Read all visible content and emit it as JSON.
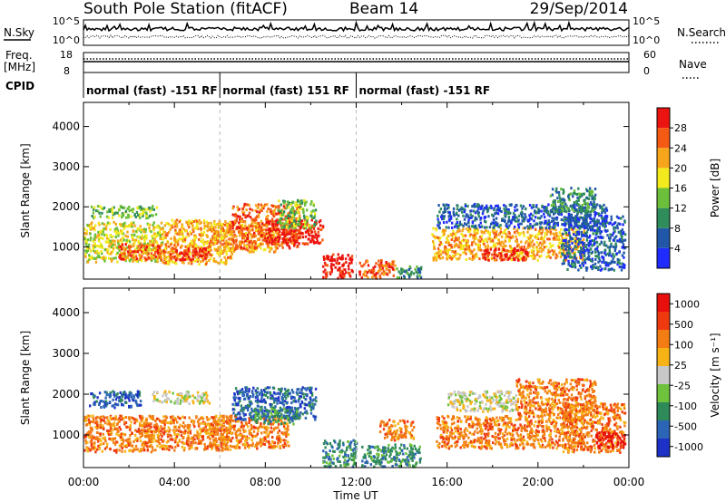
{
  "header": {
    "station": "South Pole Station (fitACF)",
    "beam": "Beam 14",
    "date": "29/Sep/2014"
  },
  "top_panels": {
    "nsky_label": "N.Sky",
    "nsky_ticks": [
      "10^5",
      "10^0"
    ],
    "nsearch_label": "N.Search",
    "nsearch_ticks": [
      "10^5",
      "10^0"
    ],
    "freq_label": "Freq.",
    "freq_unit": "[MHz]",
    "freq_ticks": [
      "18",
      "8"
    ],
    "nave_label": "Nave",
    "nave_ticks": [
      "60",
      "0"
    ],
    "cpid_label": "CPID",
    "cpid_segments": [
      {
        "label": "normal (fast) -151 RF",
        "start_hour": 0,
        "end_hour": 6
      },
      {
        "label": "normal (fast) 151 RF",
        "start_hour": 6,
        "end_hour": 12
      },
      {
        "label": "normal (fast) -151 RF",
        "start_hour": 12,
        "end_hour": 24
      }
    ]
  },
  "time_axis": {
    "label": "Time UT",
    "ticks": [
      "00:00",
      "04:00",
      "08:00",
      "12:00",
      "16:00",
      "20:00",
      "00:00"
    ]
  },
  "chart_data": [
    {
      "type": "heatmap",
      "quantity": "power",
      "ylabel": "Slant Range [km]",
      "yticks": [
        1000,
        2000,
        3000,
        4000
      ],
      "ylim": [
        200,
        4600
      ],
      "xlim_hours": [
        0,
        24
      ],
      "colorbar_label": "Power [dB]",
      "colorbar_ticks": [
        "4",
        "8",
        "12",
        "16",
        "20",
        "24",
        "28"
      ],
      "colors": [
        "#1f2bff",
        "#2157a8",
        "#2f8c5b",
        "#6bbf3a",
        "#f2ea1d",
        "#f7a51a",
        "#f45a14",
        "#ec1410"
      ],
      "regions": [
        {
          "t0": 0.0,
          "t1": 3.5,
          "r0": 650,
          "r1": 1650,
          "level": 4
        },
        {
          "t0": 0.3,
          "t1": 3.2,
          "r0": 1750,
          "r1": 2050,
          "level": 3
        },
        {
          "t0": 1.5,
          "t1": 4.0,
          "r0": 700,
          "r1": 1100,
          "level": 6
        },
        {
          "t0": 3.5,
          "t1": 6.5,
          "r0": 600,
          "r1": 1700,
          "level": 5
        },
        {
          "t0": 4.0,
          "t1": 5.5,
          "r0": 700,
          "r1": 1000,
          "level": 7
        },
        {
          "t0": 5.5,
          "t1": 8.5,
          "r0": 900,
          "r1": 1600,
          "level": 5
        },
        {
          "t0": 6.5,
          "t1": 9.5,
          "r0": 1000,
          "r1": 2100,
          "level": 6
        },
        {
          "t0": 8.0,
          "t1": 10.5,
          "r0": 1100,
          "r1": 1700,
          "level": 7
        },
        {
          "t0": 8.5,
          "t1": 10.2,
          "r0": 1500,
          "r1": 2200,
          "level": 3
        },
        {
          "t0": 10.5,
          "t1": 11.8,
          "r0": 250,
          "r1": 850,
          "level": 7
        },
        {
          "t0": 12.1,
          "t1": 13.7,
          "r0": 250,
          "r1": 700,
          "level": 6
        },
        {
          "t0": 13.7,
          "t1": 14.9,
          "r0": 250,
          "r1": 550,
          "level": 2
        },
        {
          "t0": 15.3,
          "t1": 22.0,
          "r0": 700,
          "r1": 1500,
          "level": 5
        },
        {
          "t0": 17.5,
          "t1": 19.5,
          "r0": 700,
          "r1": 1000,
          "level": 7
        },
        {
          "t0": 15.5,
          "t1": 23.0,
          "r0": 1500,
          "r1": 2100,
          "level": 1
        },
        {
          "t0": 21.0,
          "t1": 23.8,
          "r0": 450,
          "r1": 1800,
          "level": 1
        },
        {
          "t0": 20.5,
          "t1": 22.5,
          "r0": 1900,
          "r1": 2500,
          "level": 2
        }
      ]
    },
    {
      "type": "heatmap",
      "quantity": "velocity",
      "ylabel": "Slant Range [km]",
      "yticks": [
        1000,
        2000,
        3000,
        4000
      ],
      "ylim": [
        200,
        4600
      ],
      "xlim_hours": [
        0,
        24
      ],
      "colorbar_label": "Velocity [m s⁻¹]",
      "colorbar_ticks": [
        "1000",
        "500",
        "100",
        "25",
        "-25",
        "-100",
        "-500",
        "-1000"
      ],
      "colors": [
        "#1d31c7",
        "#2c64b6",
        "#2e8a58",
        "#6ec23c",
        "#c8c8c8",
        "#f7b316",
        "#f37c13",
        "#ef3a10",
        "#e8100c"
      ],
      "regions": [
        {
          "t0": 0.0,
          "t1": 3.0,
          "r0": 600,
          "r1": 1500,
          "level": 6
        },
        {
          "t0": 0.2,
          "t1": 2.5,
          "r0": 1700,
          "r1": 2100,
          "level": 1
        },
        {
          "t0": 2.5,
          "t1": 6.5,
          "r0": 650,
          "r1": 1500,
          "level": 6
        },
        {
          "t0": 3.0,
          "t1": 5.5,
          "r0": 1800,
          "r1": 2100,
          "level": 4
        },
        {
          "t0": 5.5,
          "t1": 9.0,
          "r0": 700,
          "r1": 1500,
          "level": 6
        },
        {
          "t0": 6.5,
          "t1": 10.2,
          "r0": 1400,
          "r1": 2200,
          "level": 1
        },
        {
          "t0": 7.5,
          "t1": 9.5,
          "r0": 1300,
          "r1": 1700,
          "level": 2
        },
        {
          "t0": 10.5,
          "t1": 12.0,
          "r0": 250,
          "r1": 900,
          "level": 2
        },
        {
          "t0": 12.2,
          "t1": 14.8,
          "r0": 250,
          "r1": 800,
          "level": 2
        },
        {
          "t0": 13.0,
          "t1": 14.5,
          "r0": 900,
          "r1": 1400,
          "level": 6
        },
        {
          "t0": 15.5,
          "t1": 22.0,
          "r0": 700,
          "r1": 1500,
          "level": 6
        },
        {
          "t0": 16.0,
          "t1": 19.0,
          "r0": 1600,
          "r1": 2100,
          "level": 4
        },
        {
          "t0": 19.0,
          "t1": 22.5,
          "r0": 1500,
          "r1": 2400,
          "level": 6
        },
        {
          "t0": 21.0,
          "t1": 23.8,
          "r0": 600,
          "r1": 1800,
          "level": 6
        },
        {
          "t0": 22.5,
          "t1": 23.8,
          "r0": 700,
          "r1": 1100,
          "level": 8
        }
      ]
    }
  ]
}
